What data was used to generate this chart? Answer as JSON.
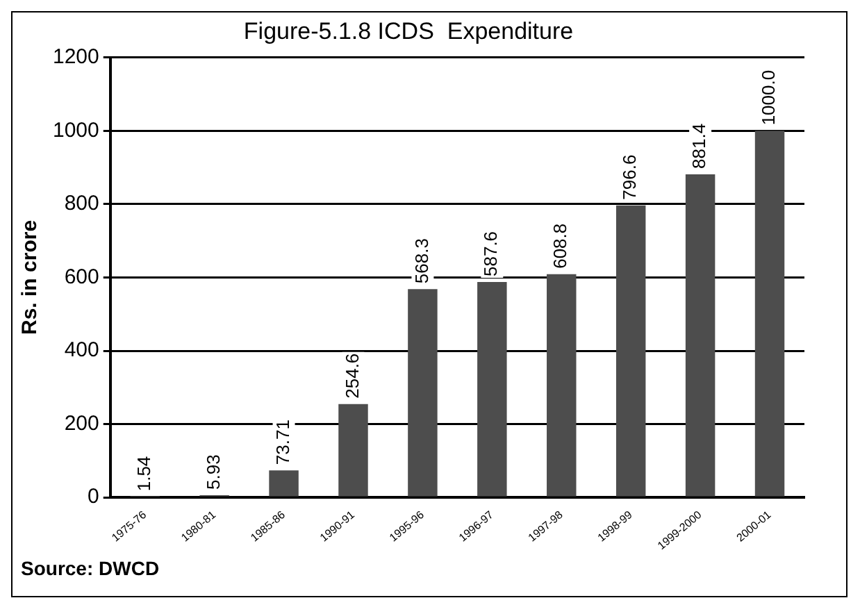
{
  "chart_data": {
    "type": "bar",
    "title": "Figure-5.1.8 ICDS  Expenditure",
    "ylabel": "Rs. in crore",
    "categories": [
      "1975-76",
      "1980-81",
      "1985-86",
      "1990-91",
      "1995-96",
      "1996-97",
      "1997-98",
      "1998-99",
      "1999-2000",
      "2000-01"
    ],
    "values": [
      1.54,
      5.93,
      73.71,
      254.6,
      568.3,
      587.6,
      608.8,
      796.6,
      881.4,
      1000.0
    ],
    "value_labels": [
      "1.54",
      "5.93",
      "73.71",
      "254.6",
      "568.3",
      "587.6",
      "608.8",
      "796.6",
      "881.4",
      "1000.0"
    ],
    "color": "#4d4d4d",
    "ylim": [
      0,
      1200
    ],
    "yticks": [
      0,
      200,
      400,
      600,
      800,
      1000,
      1200
    ],
    "grid": "y",
    "annotations": [
      "Source: DWCD"
    ]
  }
}
